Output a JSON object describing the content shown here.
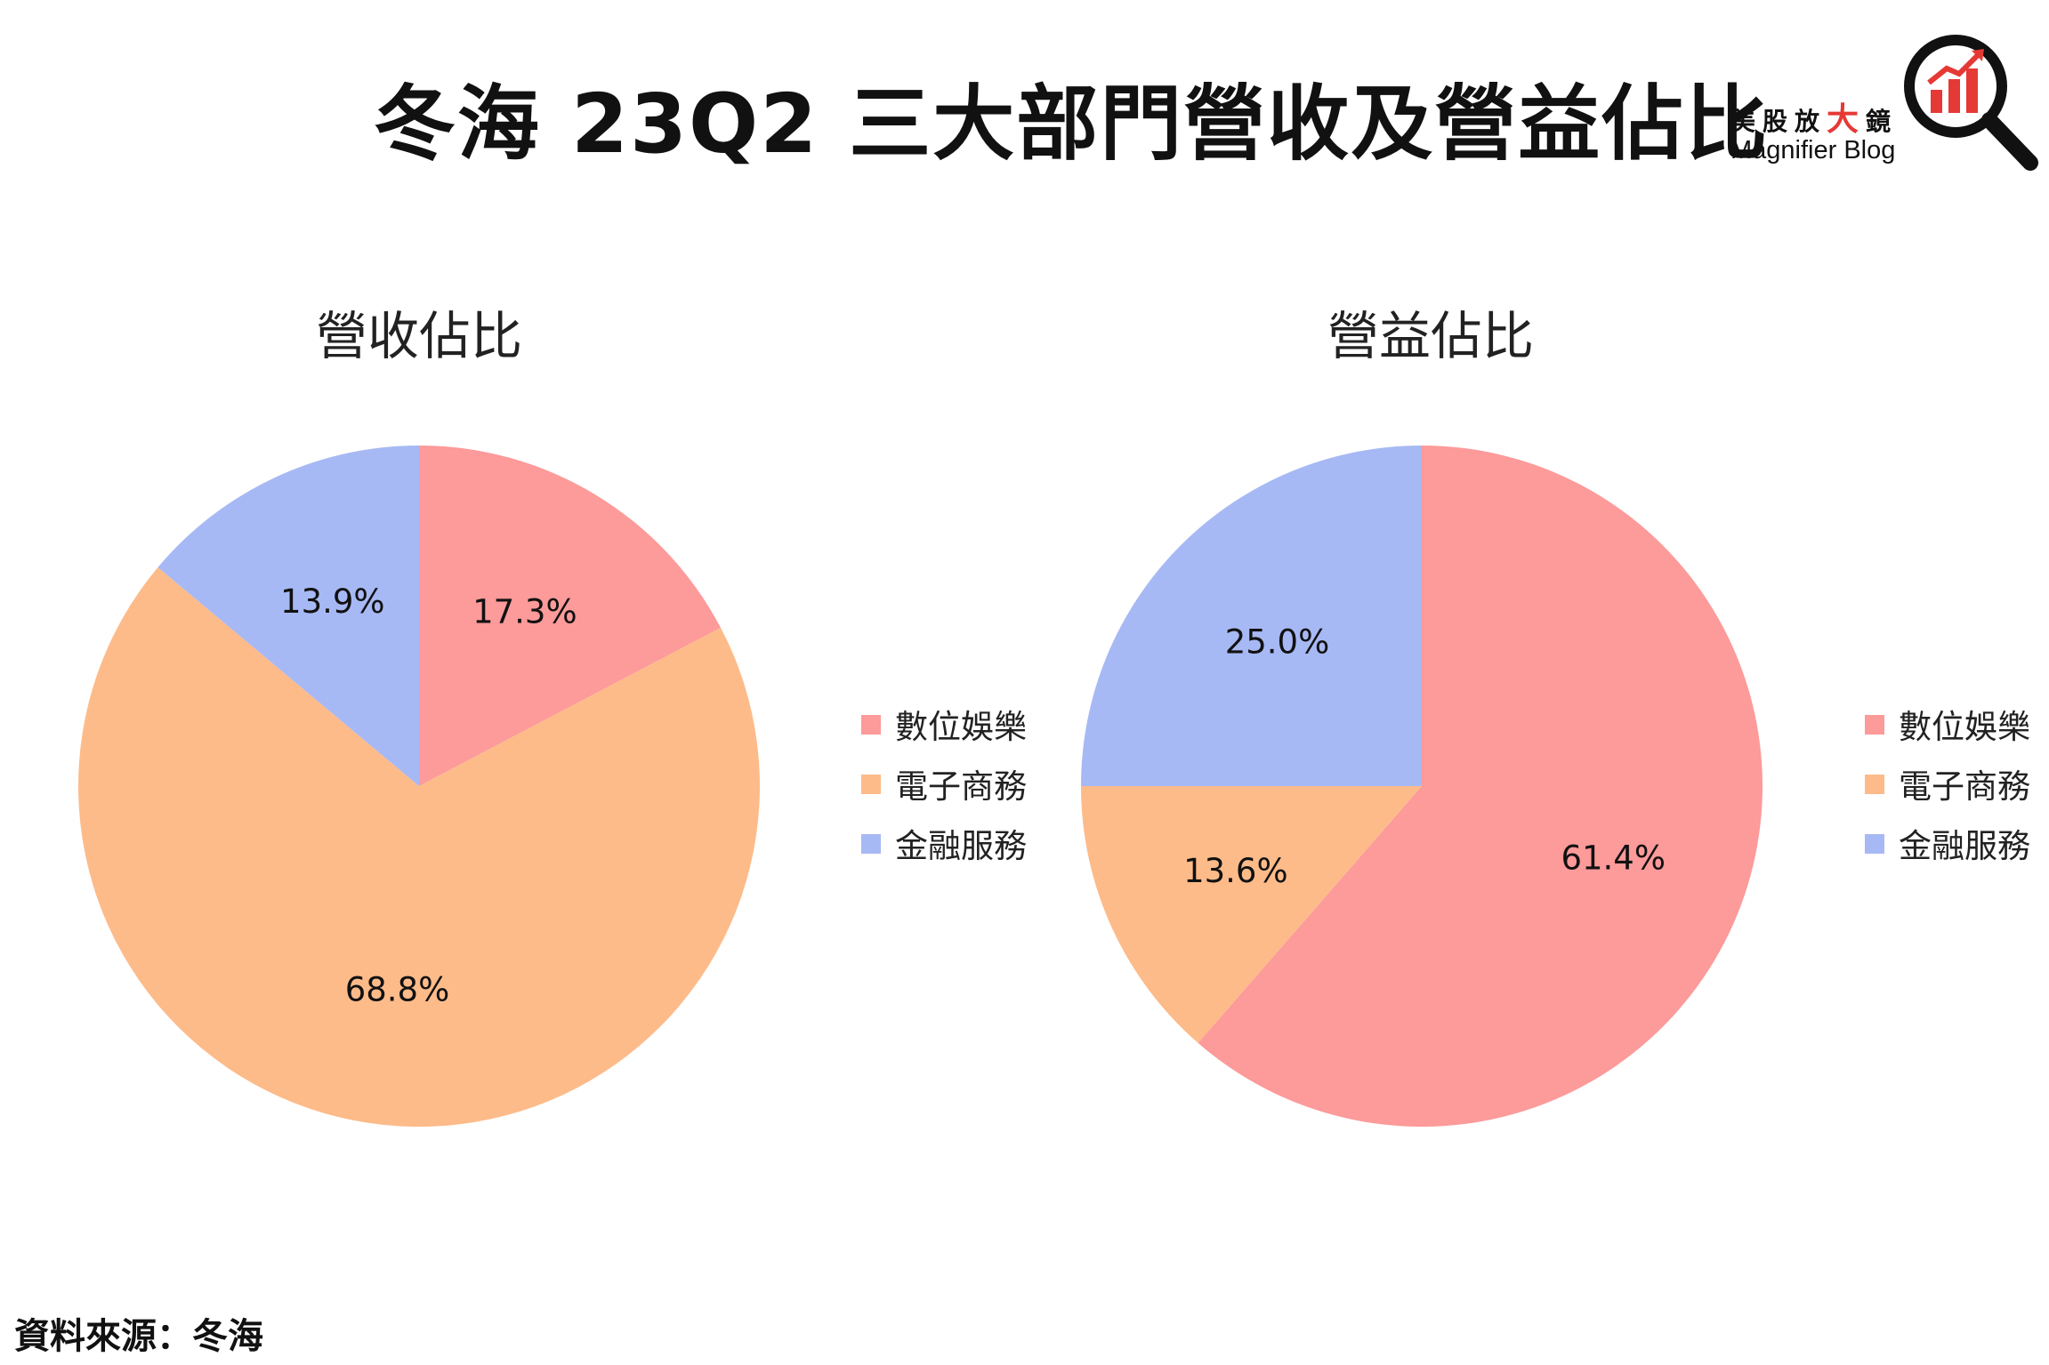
{
  "title": "冬海 23Q2 三大部門營收及營益佔比",
  "brand": {
    "cn_pre": "美股放",
    "cn_big": "大",
    "cn_post": "鏡",
    "en": "Magnifier Blog"
  },
  "source": "資料來源：冬海",
  "colors": {
    "digital_entertainment": "#fd9a9a",
    "e_commerce": "#fdbb8a",
    "financial_services": "#a7b9f4",
    "logo_red": "#e53935"
  },
  "chart_data": [
    {
      "type": "pie",
      "title": "營收佔比",
      "categories": [
        "數位娛樂",
        "電子商務",
        "金融服務"
      ],
      "values": [
        17.3,
        68.8,
        13.9
      ],
      "labels": [
        "17.3%",
        "68.8%",
        "13.9%"
      ],
      "legend": "right"
    },
    {
      "type": "pie",
      "title": "營益佔比",
      "categories": [
        "數位娛樂",
        "電子商務",
        "金融服務"
      ],
      "values": [
        61.4,
        13.6,
        25.0
      ],
      "labels": [
        "61.4%",
        "13.6%",
        "25.0%"
      ],
      "legend": "right"
    }
  ]
}
